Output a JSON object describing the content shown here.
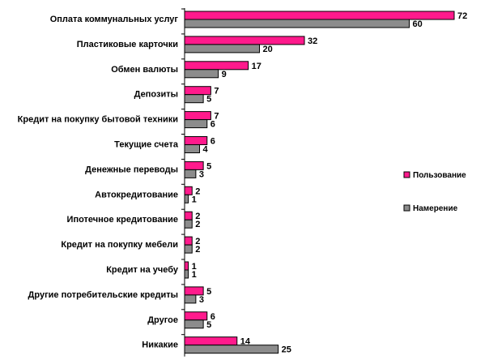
{
  "chart_data": {
    "type": "bar",
    "orientation": "horizontal",
    "categories": [
      "Оплата коммунальных услуг",
      "Пластиковые карточки",
      "Обмен валюты",
      "Депозиты",
      "Кредит на покупку бытовой техники",
      "Текущие счета",
      "Денежные переводы",
      "Автокредитование",
      "Ипотечное кредитование",
      "Кредит на покупку мебели",
      "Кредит на учебу",
      "Другие потребительские кредиты",
      "Другое",
      "Никакие"
    ],
    "series": [
      {
        "name": "Пользование",
        "color": "#ff1a8c",
        "values": [
          72,
          32,
          17,
          7,
          7,
          6,
          5,
          2,
          2,
          2,
          1,
          5,
          6,
          14
        ]
      },
      {
        "name": "Намерение",
        "color": "#8c8c8c",
        "values": [
          60,
          20,
          9,
          5,
          6,
          4,
          3,
          1,
          2,
          2,
          1,
          3,
          5,
          25
        ]
      }
    ],
    "xlim": [
      0,
      72
    ],
    "grid": false,
    "legend_position": "right",
    "data_labels": true
  }
}
